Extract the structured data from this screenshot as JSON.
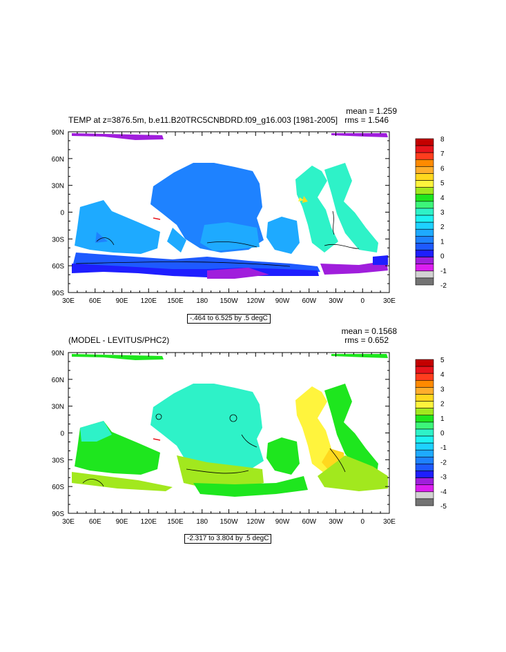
{
  "chart_data": [
    {
      "type": "heatmap",
      "title": "TEMP at z=3876.5m, b.e11.B20TRC5CNBDRD.f09_g16.003 [1981-2005]",
      "stats": {
        "mean": "mean = 1.259",
        "rms": "rms = 1.546"
      },
      "range_label": "-.464 to 6.525 by .5 degC",
      "x_ticks": [
        "30E",
        "60E",
        "90E",
        "120E",
        "150E",
        "180",
        "150W",
        "120W",
        "90W",
        "60W",
        "30W",
        "0",
        "30E"
      ],
      "y_ticks": [
        "90N",
        "60N",
        "30N",
        "0",
        "30S",
        "60S",
        "90S"
      ],
      "colorbar": {
        "labels": [
          "8",
          "7",
          "6",
          "5",
          "4",
          "3",
          "2",
          "1",
          "0",
          "-1",
          "-2"
        ],
        "colors": [
          "#c40000",
          "#e8141c",
          "#ff3d1e",
          "#ff8a00",
          "#ffae2c",
          "#ffd81e",
          "#fff43d",
          "#a2e81e",
          "#1ee61e",
          "#3df57a",
          "#2ef2c8",
          "#1ef2f2",
          "#1ed2ff",
          "#1eaaff",
          "#1e82ff",
          "#1e5aff",
          "#1e1eff",
          "#a01edc",
          "#dc1ef0",
          "#d2d2d2",
          "#737373"
        ]
      }
    },
    {
      "type": "heatmap",
      "title": "(MODEL - LEVITUS/PHC2)",
      "stats": {
        "mean": "mean = 0.1568",
        "rms": "rms = 0.652"
      },
      "range_label": "-2.317 to 3.804 by .5 degC",
      "x_ticks": [
        "30E",
        "60E",
        "90E",
        "120E",
        "150E",
        "180",
        "150W",
        "120W",
        "90W",
        "60W",
        "30W",
        "0",
        "30E"
      ],
      "y_ticks": [
        "90N",
        "60N",
        "30N",
        "0",
        "30S",
        "60S",
        "90S"
      ],
      "colorbar": {
        "labels": [
          "5",
          "4",
          "3",
          "2",
          "1",
          "0",
          "-1",
          "-2",
          "-3",
          "-4",
          "-5"
        ],
        "colors": [
          "#c40000",
          "#e8141c",
          "#ff3d1e",
          "#ff8a00",
          "#ffae2c",
          "#ffd81e",
          "#fff43d",
          "#a2e81e",
          "#1ee61e",
          "#3df57a",
          "#2ef2c8",
          "#1ef2f2",
          "#1ed2ff",
          "#1eaaff",
          "#1e82ff",
          "#1e5aff",
          "#1e1eff",
          "#a01edc",
          "#dc1ef0",
          "#d2d2d2",
          "#737373"
        ]
      }
    }
  ]
}
